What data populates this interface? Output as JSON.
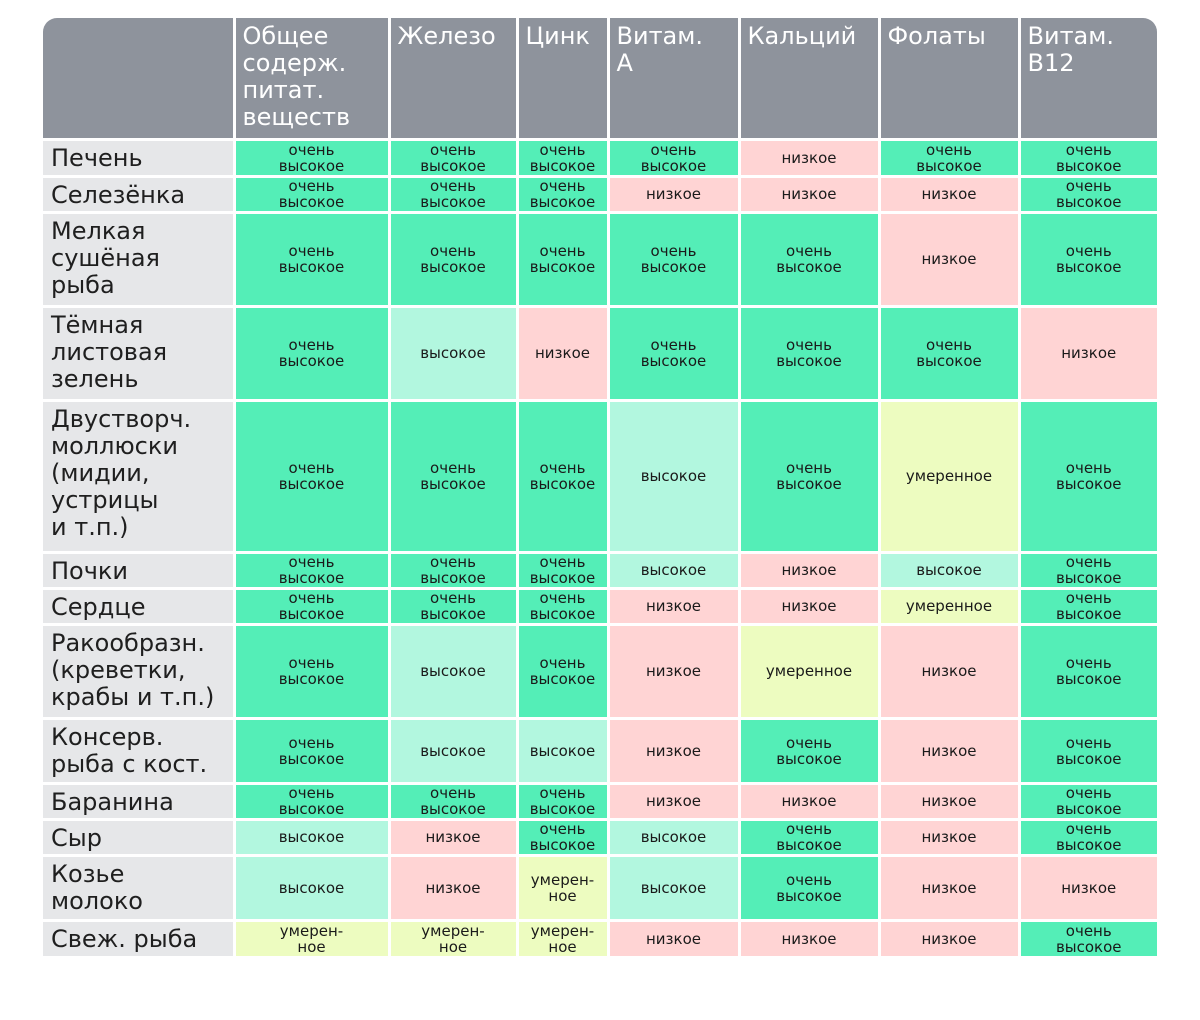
{
  "table": {
    "columns": [
      "Общее содерж. питат. веществ",
      "Железо",
      "Цинк",
      "Витам. A",
      "Кальций",
      "Фолаты",
      "Витам. B12"
    ],
    "column_lines": [
      "Общее\nсодерж.\nпитат.\nвеществ",
      "Железо",
      "Цинк",
      "Витам.\nA",
      "Кальций",
      "Фолаты",
      "Витам.\nB12"
    ],
    "levels": {
      "vhigh": "очень\nвысокое",
      "high": "высокое",
      "low": "низкое",
      "mod": "умеренное",
      "mod_wrap": "умерен-\nное"
    },
    "colors": {
      "header_bg": "#8e939c",
      "rowhead_bg": "#e6e7e9",
      "very_high": "#54eeb7",
      "high": "#b2f7df",
      "low": "#ffd4d4",
      "moderate": "#edfcc0"
    },
    "rows": [
      {
        "name": "Печень",
        "name_lines": "Печень",
        "cells": [
          "vhigh",
          "vhigh",
          "vhigh",
          "vhigh",
          "low",
          "vhigh",
          "vhigh"
        ]
      },
      {
        "name": "Селезёнка",
        "name_lines": "Селезёнка",
        "cells": [
          "vhigh",
          "vhigh",
          "vhigh",
          "low",
          "low",
          "low",
          "vhigh"
        ]
      },
      {
        "name": "Мелкая сушёная рыба",
        "name_lines": "Мелкая\nсушёная\nрыба",
        "cells": [
          "vhigh",
          "vhigh",
          "vhigh",
          "vhigh",
          "vhigh",
          "low",
          "vhigh"
        ]
      },
      {
        "name": "Тёмная листовая зелень",
        "name_lines": "Тёмная\nлистовая\nзелень",
        "cells": [
          "vhigh",
          "high",
          "low",
          "vhigh",
          "vhigh",
          "vhigh",
          "low"
        ]
      },
      {
        "name": "Двустворч. моллюски (мидии, устрицы и т.п.)",
        "name_lines": "Двустворч.\nмоллюски\n(мидии,\nустрицы\nи т.п.)",
        "cells": [
          "vhigh",
          "vhigh",
          "vhigh",
          "high",
          "vhigh",
          "mod",
          "vhigh"
        ]
      },
      {
        "name": "Почки",
        "name_lines": "Почки",
        "cells": [
          "vhigh",
          "vhigh",
          "vhigh",
          "high",
          "low",
          "high",
          "vhigh"
        ]
      },
      {
        "name": "Сердце",
        "name_lines": "Сердце",
        "cells": [
          "vhigh",
          "vhigh",
          "vhigh",
          "low",
          "low",
          "mod",
          "vhigh"
        ]
      },
      {
        "name": "Ракообразн. (креветки, крабы и т.п.)",
        "name_lines": "Ракообразн.\n(креветки,\nкрабы и т.п.)",
        "cells": [
          "vhigh",
          "high",
          "vhigh",
          "low",
          "mod",
          "low",
          "vhigh"
        ]
      },
      {
        "name": "Консерв. рыба с кост.",
        "name_lines": "Консерв.\nрыба с кост.",
        "cells": [
          "vhigh",
          "high",
          "high",
          "low",
          "vhigh",
          "low",
          "vhigh"
        ]
      },
      {
        "name": "Баранина",
        "name_lines": "Баранина",
        "cells": [
          "vhigh",
          "vhigh",
          "vhigh",
          "low",
          "low",
          "low",
          "vhigh"
        ]
      },
      {
        "name": "Сыр",
        "name_lines": "Сыр",
        "cells": [
          "high",
          "low",
          "vhigh",
          "high",
          "vhigh",
          "low",
          "vhigh"
        ]
      },
      {
        "name": "Козье молоко",
        "name_lines": "Козье\nмолоко",
        "cells": [
          "high",
          "low",
          "mod_wrap",
          "high",
          "vhigh",
          "low",
          "low"
        ]
      },
      {
        "name": "Свеж. рыба",
        "name_lines": "Свеж. рыба",
        "cells": [
          "mod_wrap",
          "mod_wrap",
          "mod_wrap",
          "low",
          "low",
          "low",
          "vhigh"
        ]
      }
    ]
  }
}
